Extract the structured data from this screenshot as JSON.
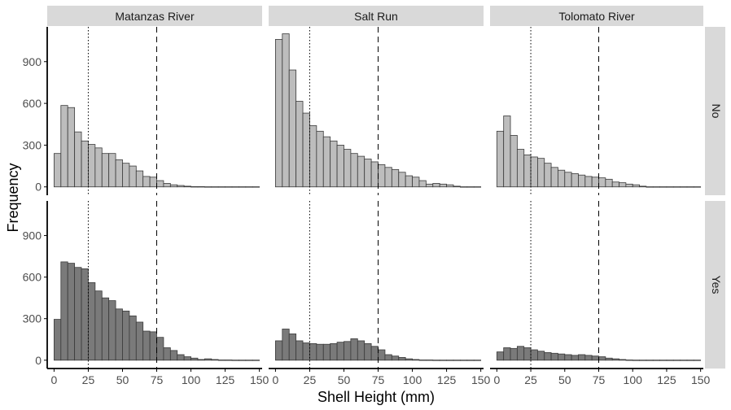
{
  "chart_data": {
    "type": "bar",
    "xlabel": "Shell Height (mm)",
    "ylabel": "Frequency",
    "columns": [
      "Matanzas River",
      "Salt Run",
      "Tolomato River"
    ],
    "rows": [
      "No",
      "Yes"
    ],
    "x_ticks": [
      "0",
      "25",
      "50",
      "75",
      "100",
      "125",
      "150"
    ],
    "y_ticks": [
      "0",
      "300",
      "600",
      "900"
    ],
    "xlim": [
      -5,
      152
    ],
    "ylim": [
      -60,
      1150
    ],
    "bin_width": 5,
    "bin_starts": [
      0,
      5,
      10,
      15,
      20,
      25,
      30,
      35,
      40,
      45,
      50,
      55,
      60,
      65,
      70,
      75,
      80,
      85,
      90,
      95,
      100,
      105,
      110,
      115,
      120,
      125,
      130,
      135,
      140,
      145
    ],
    "reference_lines": [
      {
        "x": 25,
        "style": "dotted"
      },
      {
        "x": 75,
        "style": "dashed"
      }
    ],
    "series": [
      {
        "column": "Matanzas River",
        "row": "No",
        "values": [
          240,
          585,
          570,
          395,
          330,
          305,
          280,
          240,
          240,
          195,
          170,
          150,
          115,
          75,
          70,
          45,
          25,
          15,
          10,
          5,
          2,
          2,
          1,
          1,
          1,
          1,
          1,
          1,
          1,
          1
        ]
      },
      {
        "column": "Salt Run",
        "row": "No",
        "values": [
          1060,
          1100,
          840,
          615,
          530,
          440,
          400,
          360,
          330,
          300,
          270,
          240,
          220,
          200,
          180,
          160,
          140,
          125,
          105,
          80,
          70,
          45,
          20,
          25,
          20,
          15,
          5,
          1,
          1,
          1
        ]
      },
      {
        "column": "Tolomato River",
        "row": "No",
        "values": [
          400,
          510,
          370,
          270,
          230,
          215,
          205,
          170,
          140,
          120,
          105,
          95,
          85,
          75,
          70,
          65,
          55,
          35,
          30,
          20,
          15,
          5,
          1,
          1,
          1,
          1,
          1,
          1,
          1,
          1
        ]
      },
      {
        "column": "Matanzas River",
        "row": "Yes",
        "values": [
          295,
          710,
          700,
          670,
          660,
          560,
          500,
          450,
          430,
          370,
          355,
          320,
          275,
          210,
          205,
          165,
          90,
          70,
          40,
          25,
          15,
          5,
          10,
          5,
          2,
          2,
          1,
          1,
          1,
          1
        ]
      },
      {
        "column": "Salt Run",
        "row": "Yes",
        "values": [
          140,
          225,
          190,
          140,
          125,
          120,
          115,
          115,
          120,
          130,
          135,
          155,
          140,
          120,
          100,
          75,
          40,
          30,
          20,
          10,
          5,
          2,
          2,
          1,
          1,
          1,
          1,
          1,
          1,
          1
        ]
      },
      {
        "column": "Tolomato River",
        "row": "Yes",
        "values": [
          60,
          90,
          85,
          100,
          90,
          75,
          65,
          55,
          50,
          45,
          40,
          35,
          40,
          35,
          30,
          25,
          15,
          10,
          5,
          2,
          1,
          1,
          1,
          1,
          1,
          1,
          1,
          1,
          1,
          1
        ]
      }
    ],
    "colors": {
      "no_fill": "#bdbdbd",
      "yes_fill": "#7a7a7a",
      "bar_stroke": "#3a3a3a",
      "strip_fill": "#d9d9d9",
      "axis": "#000000",
      "tick_text": "#4d4d4d"
    },
    "grid": false
  }
}
